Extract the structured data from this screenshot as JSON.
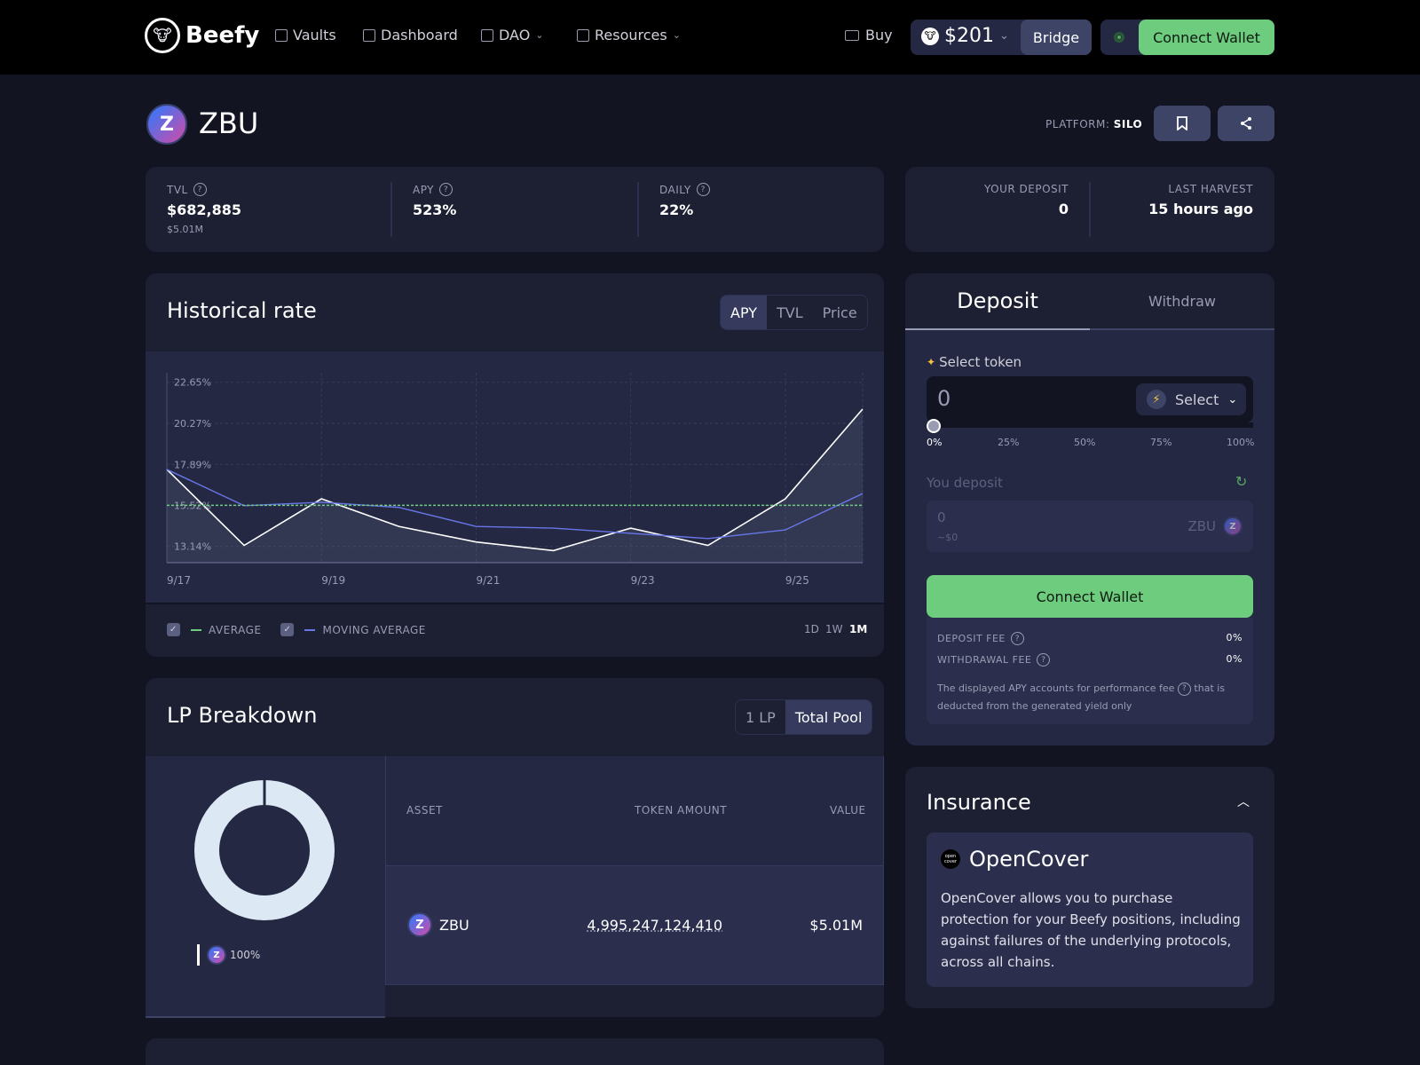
{
  "header": {
    "brand": "Beefy",
    "nav": [
      {
        "label": "Vaults",
        "icon": "vault-icon"
      },
      {
        "label": "Dashboard",
        "icon": "dashboard-icon"
      },
      {
        "label": "DAO",
        "icon": "dao-icon",
        "dropdown": true
      },
      {
        "label": "Resources",
        "icon": "info-icon",
        "dropdown": true
      }
    ],
    "buy_label": "Buy",
    "price": "$201",
    "bridge_label": "Bridge",
    "connect_label": "Connect Wallet"
  },
  "vault": {
    "name": "ZBU",
    "platform_label": "PLATFORM:",
    "platform_value": "SILO"
  },
  "stats": {
    "tvl_label": "TVL",
    "tvl_value": "$682,885",
    "tvl_sub": "$5.01M",
    "apy_label": "APY",
    "apy_value": "523%",
    "daily_label": "DAILY",
    "daily_value": "22%",
    "your_deposit_label": "YOUR DEPOSIT",
    "your_deposit_value": "0",
    "last_harvest_label": "LAST HARVEST",
    "last_harvest_value": "15 hours ago"
  },
  "history": {
    "title": "Historical rate",
    "tabs": [
      "APY",
      "TVL",
      "Price"
    ],
    "active_tab": "APY",
    "legend_average": "AVERAGE",
    "legend_moving": "MOVING AVERAGE",
    "ranges": [
      "1D",
      "1W",
      "1M"
    ],
    "active_range": "1M"
  },
  "chart_data": {
    "type": "line",
    "x": [
      "9/17",
      "9/18",
      "9/19",
      "9/20",
      "9/21",
      "9/22",
      "9/23",
      "9/24",
      "9/25",
      "9/26"
    ],
    "x_ticks": [
      "9/17",
      "9/19",
      "9/21",
      "9/23",
      "9/25"
    ],
    "y_ticks": [
      "22.65%",
      "20.27%",
      "17.89%",
      "15.52%",
      "13.14%"
    ],
    "ylim": [
      12.2,
      23.2
    ],
    "grid": true,
    "series": [
      {
        "values": [
          17.6,
          13.2,
          15.9,
          14.3,
          13.4,
          12.9,
          14.2,
          13.2,
          15.9,
          21.1
        ],
        "color": "#ffffff"
      },
      {
        "values": [
          17.6,
          15.5,
          15.7,
          15.4,
          14.3,
          14.2,
          13.9,
          13.6,
          14.1,
          16.2
        ],
        "color": "#6876e8"
      }
    ],
    "average": 15.52,
    "average_color": "#6dcc7d"
  },
  "lp": {
    "title": "LP Breakdown",
    "tabs": [
      "1 LP",
      "Total Pool"
    ],
    "active_tab": "Total Pool",
    "col_asset": "ASSET",
    "col_amount": "TOKEN AMOUNT",
    "col_value": "VALUE",
    "rows": [
      {
        "asset": "ZBU",
        "amount": "4,995,247,124,410",
        "value": "$5.01M"
      }
    ],
    "donut_share": 1.0,
    "donut_label": "100%"
  },
  "deposit": {
    "tab_deposit": "Deposit",
    "tab_withdraw": "Withdraw",
    "select_token_label": "Select token",
    "input_value": "0",
    "select_label": "Select",
    "slider_value": 0,
    "percentages": [
      "0%",
      "25%",
      "50%",
      "75%",
      "100%"
    ],
    "you_deposit_label": "You deposit",
    "you_deposit_value": "0",
    "you_deposit_usd": "~$0",
    "you_deposit_token": "ZBU",
    "connect_label": "Connect Wallet",
    "deposit_fee_label": "DEPOSIT FEE",
    "deposit_fee_value": "0%",
    "withdrawal_fee_label": "WITHDRAWAL FEE",
    "withdrawal_fee_value": "0%",
    "note_part1": "The displayed APY accounts for performance fee",
    "note_part2": "that is deducted from the generated yield only"
  },
  "insurance": {
    "title": "Insurance",
    "provider": "OpenCover",
    "provider_logo_text": "open cover",
    "description": "OpenCover allows you to purchase protection for your Beefy positions, including against failures of the underlying protocols, across all chains."
  }
}
